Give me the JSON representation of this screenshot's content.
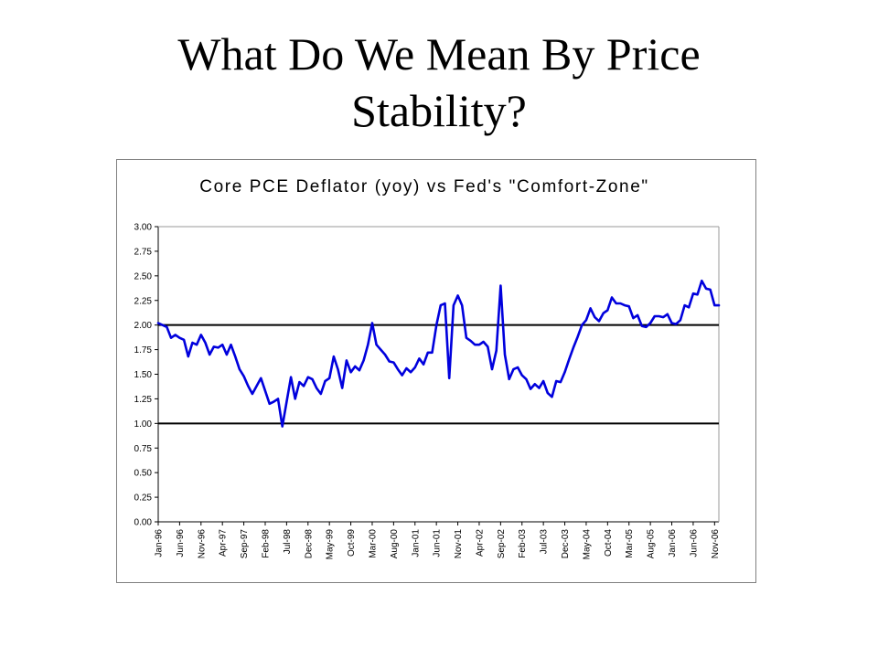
{
  "slide": {
    "title_line1": "What Do We Mean By Price",
    "title_line2": "Stability?"
  },
  "chart_data": {
    "type": "line",
    "title": "Core PCE Deflator (yoy) vs Fed's \"Comfort-Zone\"",
    "xlabel": "",
    "ylabel": "",
    "ylim": [
      0,
      3
    ],
    "y_ticks": [
      "0.00",
      "0.25",
      "0.50",
      "0.75",
      "1.00",
      "1.25",
      "1.50",
      "1.75",
      "2.00",
      "2.25",
      "2.50",
      "2.75",
      "3.00"
    ],
    "x_tick_labels": [
      "Jan-96",
      "Jun-96",
      "Nov-96",
      "Apr-97",
      "Sep-97",
      "Feb-98",
      "Jul-98",
      "Dec-98",
      "May-99",
      "Oct-99",
      "Mar-00",
      "Aug-00",
      "Jan-01",
      "Jun-01",
      "Nov-01",
      "Apr-02",
      "Sep-02",
      "Feb-03",
      "Jul-03",
      "Dec-03",
      "May-04",
      "Oct-04",
      "Mar-05",
      "Aug-05",
      "Jan-06",
      "Jun-06",
      "Nov-06"
    ],
    "x_start": "Jan-96",
    "x_end": "Nov-06",
    "grid": false,
    "reference_lines": [
      2.0,
      1.0
    ],
    "line_color": "#0000dd",
    "series": [
      {
        "values": [
          2.02,
          2.0,
          1.98,
          1.87,
          1.9,
          1.87,
          1.85,
          1.68,
          1.82,
          1.8,
          1.9,
          1.82,
          1.7,
          1.78,
          1.77,
          1.8,
          1.7,
          1.8,
          1.68,
          1.55,
          1.48,
          1.38,
          1.3,
          1.38,
          1.46,
          1.33,
          1.2,
          1.22,
          1.25,
          0.97,
          1.22,
          1.47,
          1.25,
          1.42,
          1.38,
          1.47,
          1.45,
          1.36,
          1.3,
          1.43,
          1.46,
          1.68,
          1.55,
          1.36,
          1.64,
          1.52,
          1.58,
          1.54,
          1.64,
          1.8,
          2.02,
          1.8,
          1.75,
          1.7,
          1.63,
          1.62,
          1.55,
          1.49,
          1.56,
          1.52,
          1.57,
          1.66,
          1.6,
          1.72,
          1.72,
          2.0,
          2.2,
          2.22,
          1.46,
          2.2,
          2.3,
          2.2,
          1.87,
          1.84,
          1.8,
          1.8,
          1.83,
          1.78,
          1.55,
          1.74,
          2.4,
          1.7,
          1.45,
          1.55,
          1.57,
          1.49,
          1.45,
          1.35,
          1.4,
          1.36,
          1.43,
          1.31,
          1.27,
          1.43,
          1.42,
          1.52,
          1.65,
          1.77,
          1.88,
          2.0,
          2.05,
          2.17,
          2.08,
          2.04,
          2.12,
          2.15,
          2.28,
          2.22,
          2.22,
          2.2,
          2.19,
          2.07,
          2.1,
          1.99,
          1.98,
          2.02,
          2.09,
          2.09,
          2.08,
          2.11,
          2.02,
          2.01,
          2.05,
          2.2,
          2.18,
          2.32,
          2.31,
          2.45,
          2.37,
          2.36,
          2.2,
          2.2
        ]
      }
    ]
  }
}
